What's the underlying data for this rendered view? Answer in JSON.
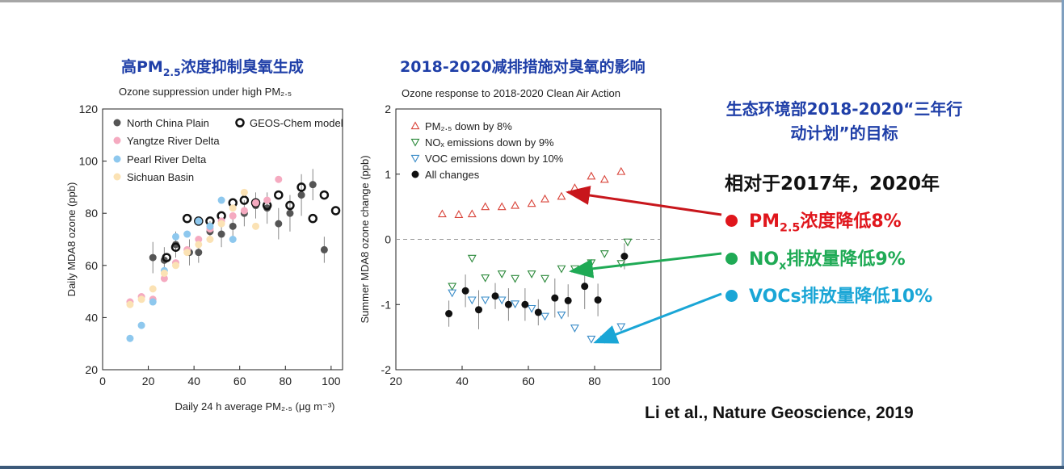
{
  "left_title": {
    "text": "高PM",
    "sub": "2.5",
    "rest": "浓度抑制臭氧生成"
  },
  "right_title": "2018-2020减排措施对臭氧的影响",
  "side": {
    "title": "生态环境部2018-2020“三年行动计划”的目标",
    "relative": "相对于2017年，2020年",
    "items": [
      {
        "prefix": "PM",
        "sub": "2.5",
        "rest": "浓度降低8%",
        "color": "#e0161c"
      },
      {
        "prefix": "NO",
        "sub": "x",
        "rest": "排放量降低9%",
        "color": "#1faa55"
      },
      {
        "prefix": "VOCs",
        "sub": "",
        "rest": "排放量降低10%",
        "color": "#1aa6d6"
      }
    ],
    "reference": "Li et al., Nature Geoscience, 2019"
  },
  "chart_data": [
    {
      "type": "scatter",
      "title": "Ozone suppression under high PM₂.₅",
      "xlabel": "Daily 24 h average PM₂.₅ (μg m⁻³)",
      "ylabel": "Daily MDA8 ozone (ppb)",
      "xlim": [
        0,
        105
      ],
      "ylim": [
        20,
        120
      ],
      "xticks": [
        0,
        20,
        40,
        60,
        80,
        100
      ],
      "yticks": [
        20,
        40,
        60,
        80,
        100,
        120
      ],
      "legend_position": "top-left",
      "series": [
        {
          "name": "North China Plain",
          "color": "#555555",
          "marker": "filled-circle",
          "points": [
            [
              22,
              63
            ],
            [
              27,
              62
            ],
            [
              32,
              68
            ],
            [
              38,
              65
            ],
            [
              42,
              65
            ],
            [
              47,
              73
            ],
            [
              52,
              72
            ],
            [
              57,
              75
            ],
            [
              62,
              80
            ],
            [
              67,
              83
            ],
            [
              72,
              82
            ],
            [
              77,
              76
            ],
            [
              82,
              80
            ],
            [
              87,
              87
            ],
            [
              92,
              91
            ],
            [
              97,
              66
            ]
          ],
          "errors": [
            6,
            5,
            5,
            5,
            4,
            4,
            5,
            4,
            5,
            5,
            6,
            6,
            7,
            8,
            6,
            5
          ]
        },
        {
          "name": "GEOS-Chem model",
          "color": "#111111",
          "marker": "open-circle",
          "points": [
            [
              28,
              63
            ],
            [
              32,
              67
            ],
            [
              37,
              78
            ],
            [
              42,
              77
            ],
            [
              47,
              77
            ],
            [
              52,
              79
            ],
            [
              57,
              84
            ],
            [
              62,
              85
            ],
            [
              67,
              84
            ],
            [
              72,
              83
            ],
            [
              77,
              87
            ],
            [
              82,
              83
            ],
            [
              87,
              90
            ],
            [
              92,
              78
            ],
            [
              97,
              87
            ],
            [
              102,
              81
            ]
          ]
        },
        {
          "name": "Yangtze River Delta",
          "color": "#f5aac0",
          "marker": "filled-circle",
          "points": [
            [
              12,
              46
            ],
            [
              17,
              48
            ],
            [
              22,
              47
            ],
            [
              27,
              55
            ],
            [
              32,
              61
            ],
            [
              37,
              66
            ],
            [
              42,
              70
            ],
            [
              47,
              74
            ],
            [
              52,
              77
            ],
            [
              57,
              79
            ],
            [
              62,
              81
            ],
            [
              67,
              84
            ],
            [
              72,
              85
            ],
            [
              77,
              93
            ]
          ]
        },
        {
          "name": "Pearl River Delta",
          "color": "#8ec8ee",
          "marker": "filled-circle",
          "points": [
            [
              12,
              32
            ],
            [
              17,
              37
            ],
            [
              22,
              46
            ],
            [
              27,
              58
            ],
            [
              32,
              71
            ],
            [
              37,
              72
            ],
            [
              42,
              77
            ],
            [
              47,
              75
            ],
            [
              52,
              85
            ],
            [
              57,
              70
            ]
          ]
        },
        {
          "name": "Sichuan Basin",
          "color": "#fbe2b4",
          "marker": "filled-circle",
          "points": [
            [
              12,
              45
            ],
            [
              17,
              47
            ],
            [
              22,
              51
            ],
            [
              27,
              57
            ],
            [
              32,
              60
            ],
            [
              37,
              65
            ],
            [
              42,
              68
            ],
            [
              47,
              70
            ],
            [
              52,
              76
            ],
            [
              57,
              82
            ],
            [
              62,
              88
            ],
            [
              67,
              75
            ]
          ]
        }
      ]
    },
    {
      "type": "scatter",
      "title": "Ozone response to 2018-2020 Clean Air Action",
      "xlabel": "",
      "ylabel": "Summer MDA8 ozone change (ppb)",
      "xlim": [
        20,
        100
      ],
      "ylim": [
        -2,
        2
      ],
      "xticks": [
        20,
        40,
        60,
        80,
        100
      ],
      "yticks": [
        -2,
        -1,
        0,
        1,
        2
      ],
      "zero_line": "dashed",
      "legend_position": "top-left",
      "series": [
        {
          "name": "PM₂.₅ down by 8%",
          "color": "#d9443a",
          "marker": "triangle-up",
          "points": [
            [
              34,
              0.39
            ],
            [
              39,
              0.38
            ],
            [
              43,
              0.39
            ],
            [
              47,
              0.5
            ],
            [
              52,
              0.5
            ],
            [
              56,
              0.52
            ],
            [
              61,
              0.55
            ],
            [
              65,
              0.62
            ],
            [
              70,
              0.66
            ],
            [
              74,
              0.79
            ],
            [
              79,
              0.97
            ],
            [
              83,
              0.92
            ],
            [
              88,
              1.04
            ]
          ]
        },
        {
          "name": "NOₓ emissions down by 9%",
          "color": "#2d8a3c",
          "marker": "triangle-down",
          "points": [
            [
              37,
              -0.72
            ],
            [
              43,
              -0.29
            ],
            [
              47,
              -0.59
            ],
            [
              52,
              -0.53
            ],
            [
              56,
              -0.6
            ],
            [
              61,
              -0.53
            ],
            [
              65,
              -0.6
            ],
            [
              70,
              -0.45
            ],
            [
              74,
              -0.45
            ],
            [
              79,
              -0.36
            ],
            [
              83,
              -0.22
            ],
            [
              88,
              -0.37
            ],
            [
              90,
              -0.04
            ]
          ]
        },
        {
          "name": "VOC emissions down by 10%",
          "color": "#3a8cc8",
          "marker": "triangle-down",
          "points": [
            [
              37,
              -0.82
            ],
            [
              43,
              -0.93
            ],
            [
              47,
              -0.93
            ],
            [
              52,
              -0.93
            ],
            [
              56,
              -0.99
            ],
            [
              61,
              -1.06
            ],
            [
              65,
              -1.18
            ],
            [
              70,
              -1.16
            ],
            [
              74,
              -1.36
            ],
            [
              79,
              -1.53
            ],
            [
              83,
              -1.53
            ],
            [
              88,
              -1.34
            ]
          ]
        },
        {
          "name": "All changes",
          "color": "#111111",
          "marker": "filled-circle",
          "points": [
            [
              36,
              -1.14
            ],
            [
              41,
              -0.79
            ],
            [
              45,
              -1.08
            ],
            [
              50,
              -0.87
            ],
            [
              54,
              -1.0
            ],
            [
              59,
              -1.0
            ],
            [
              63,
              -1.12
            ],
            [
              68,
              -0.9
            ],
            [
              72,
              -0.94
            ],
            [
              77,
              -0.72
            ],
            [
              81,
              -0.93
            ],
            [
              89,
              -0.26
            ]
          ],
          "errors": [
            0.2,
            0.25,
            0.3,
            0.2,
            0.25,
            0.25,
            0.2,
            0.3,
            0.25,
            0.35,
            0.25,
            0.2
          ]
        }
      ]
    }
  ]
}
